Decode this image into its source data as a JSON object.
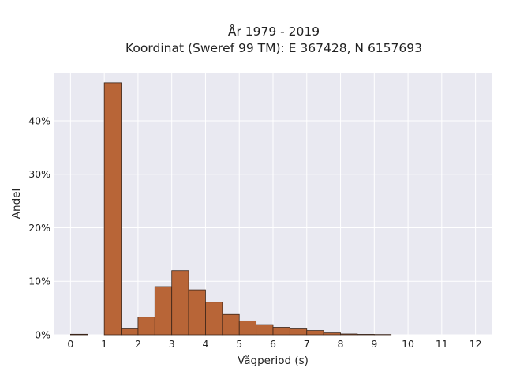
{
  "chart_data": {
    "type": "bar",
    "title_line1": "År 1979 - 2019",
    "title_line2": "Koordinat (Sweref 99 TM): E 367428, N 6157693",
    "xlabel": "Vågperiod (s)",
    "ylabel": "Andel",
    "xlim": [
      -0.5,
      12.5
    ],
    "ylim": [
      0,
      49
    ],
    "bin_width": 0.5,
    "xticks": [
      "0",
      "1",
      "2",
      "3",
      "4",
      "5",
      "6",
      "7",
      "8",
      "9",
      "10",
      "11",
      "12"
    ],
    "yticks": [
      "0%",
      "10%",
      "20%",
      "30%",
      "40%"
    ],
    "bins": [
      {
        "x0": 0.0,
        "x1": 0.5,
        "value": 0.1
      },
      {
        "x0": 1.0,
        "x1": 1.5,
        "value": 47.1
      },
      {
        "x0": 1.5,
        "x1": 2.0,
        "value": 1.1
      },
      {
        "x0": 2.0,
        "x1": 2.5,
        "value": 3.3
      },
      {
        "x0": 2.5,
        "x1": 3.0,
        "value": 9.0
      },
      {
        "x0": 3.0,
        "x1": 3.5,
        "value": 12.0
      },
      {
        "x0": 3.5,
        "x1": 4.0,
        "value": 8.4
      },
      {
        "x0": 4.0,
        "x1": 4.5,
        "value": 6.1
      },
      {
        "x0": 4.5,
        "x1": 5.0,
        "value": 3.8
      },
      {
        "x0": 5.0,
        "x1": 5.5,
        "value": 2.6
      },
      {
        "x0": 5.5,
        "x1": 6.0,
        "value": 1.9
      },
      {
        "x0": 6.0,
        "x1": 6.5,
        "value": 1.4
      },
      {
        "x0": 6.5,
        "x1": 7.0,
        "value": 1.1
      },
      {
        "x0": 7.0,
        "x1": 7.5,
        "value": 0.8
      },
      {
        "x0": 7.5,
        "x1": 8.0,
        "value": 0.35
      },
      {
        "x0": 8.0,
        "x1": 8.5,
        "value": 0.15
      },
      {
        "x0": 8.5,
        "x1": 9.0,
        "value": 0.08
      },
      {
        "x0": 9.0,
        "x1": 9.5,
        "value": 0.05
      }
    ],
    "grid": true,
    "colors": {
      "bar": "#b86537",
      "bar_edge": "#3a2418",
      "plot_bg": "#e9e9f1",
      "grid": "#ffffff"
    }
  }
}
